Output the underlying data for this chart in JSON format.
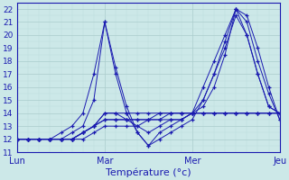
{
  "xlabel": "Température (°c)",
  "xlim": [
    0,
    72
  ],
  "ylim": [
    11,
    22.5
  ],
  "yticks": [
    11,
    12,
    13,
    14,
    15,
    16,
    17,
    18,
    19,
    20,
    21,
    22
  ],
  "xticks": [
    0,
    24,
    48,
    72
  ],
  "xtick_labels": [
    "Lun",
    "Mar",
    "Mer",
    "Jeu"
  ],
  "bg_color": "#cce8e8",
  "grid_major_color": "#aacccc",
  "grid_minor_color": "#bbdddd",
  "line_color": "#1a1ab0",
  "series": [
    {
      "x": [
        0,
        3,
        6,
        9,
        12,
        15,
        18,
        21,
        24,
        27,
        30,
        33,
        36,
        39,
        42,
        45,
        48,
        51,
        54,
        57,
        60,
        63,
        66,
        69,
        72
      ],
      "y": [
        12,
        12,
        12,
        12,
        12.5,
        13,
        14,
        17,
        21,
        17,
        14,
        12.5,
        11.5,
        12.5,
        13,
        13.5,
        14,
        16,
        18,
        20,
        22,
        21.5,
        19,
        16,
        13.5
      ]
    },
    {
      "x": [
        0,
        3,
        6,
        9,
        12,
        15,
        18,
        21,
        24,
        27,
        30,
        33,
        36,
        39,
        42,
        45,
        48,
        51,
        54,
        57,
        60,
        63,
        66,
        69,
        72
      ],
      "y": [
        12,
        12,
        12,
        12,
        12,
        12.5,
        13,
        15,
        21,
        17.5,
        14.5,
        12.5,
        11.5,
        12,
        12.5,
        13,
        13.5,
        15,
        17,
        19.5,
        22,
        21,
        18,
        15.5,
        13.5
      ]
    },
    {
      "x": [
        0,
        3,
        6,
        9,
        12,
        15,
        18,
        21,
        24,
        27,
        30,
        33,
        36,
        39,
        42,
        45,
        48,
        51,
        54,
        57,
        60,
        63,
        66,
        69,
        72
      ],
      "y": [
        12,
        12,
        12,
        12,
        12,
        12,
        12.5,
        13,
        14,
        14,
        13.5,
        13,
        12.5,
        13,
        13.5,
        13.5,
        14,
        14.5,
        16,
        18.5,
        22,
        20,
        17,
        14.5,
        14
      ]
    },
    {
      "x": [
        0,
        3,
        6,
        9,
        12,
        15,
        18,
        21,
        24,
        27,
        30,
        33,
        36,
        39,
        42,
        45,
        48,
        51,
        54,
        57,
        60,
        63,
        66,
        69,
        72
      ],
      "y": [
        12,
        12,
        12,
        12,
        12,
        12,
        12.5,
        13,
        13.5,
        13.5,
        13.5,
        13.5,
        13.5,
        13.5,
        13.5,
        13.5,
        14,
        15,
        17,
        19,
        21.5,
        20,
        17,
        14.5,
        14
      ]
    },
    {
      "x": [
        0,
        3,
        6,
        9,
        12,
        15,
        18,
        21,
        24,
        27,
        30,
        33,
        36,
        39,
        42,
        45,
        48,
        51,
        54,
        57,
        60,
        63,
        66,
        69,
        72
      ],
      "y": [
        12,
        12,
        12,
        12,
        12,
        12,
        12,
        12.5,
        13,
        13,
        13,
        13,
        13.5,
        14,
        14,
        14,
        14,
        14,
        14,
        14,
        14,
        14,
        14,
        14,
        14
      ]
    },
    {
      "x": [
        0,
        3,
        6,
        9,
        12,
        15,
        18,
        21,
        24,
        27,
        30,
        33,
        36,
        39,
        42,
        45,
        48,
        51,
        54,
        57,
        60,
        63,
        66,
        69,
        72
      ],
      "y": [
        12,
        12,
        12,
        12,
        12,
        12,
        12.5,
        13,
        13.5,
        13.5,
        13.5,
        13.5,
        13.5,
        13.5,
        14,
        14,
        14,
        14,
        14,
        14,
        14,
        14,
        14,
        14,
        14
      ]
    },
    {
      "x": [
        0,
        3,
        6,
        9,
        12,
        15,
        18,
        21,
        24,
        27,
        30,
        33,
        36,
        39,
        42,
        45,
        48,
        51,
        54,
        57,
        60,
        63,
        66,
        69,
        72
      ],
      "y": [
        12,
        12,
        12,
        12,
        12,
        12,
        12.5,
        13,
        14,
        14,
        14,
        14,
        14,
        14,
        14,
        14,
        14,
        14,
        14,
        14,
        14,
        14,
        14,
        14,
        14
      ]
    }
  ]
}
